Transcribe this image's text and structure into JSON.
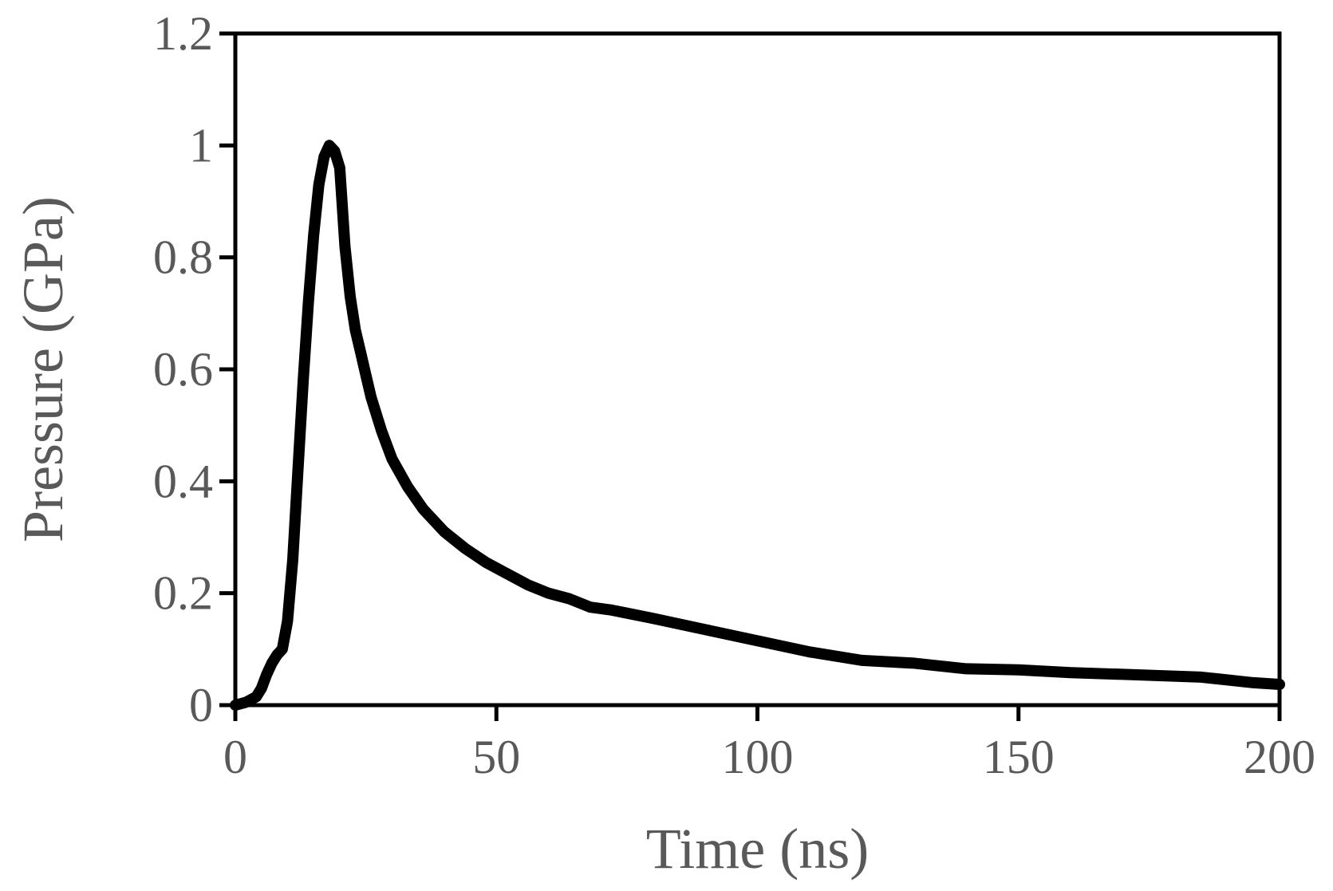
{
  "chart_data": {
    "type": "line",
    "title": "",
    "xlabel": "Time (ns)",
    "ylabel": "Pressure (GPa)",
    "xlim": [
      0,
      200
    ],
    "ylim": [
      0,
      1.2
    ],
    "x_ticks": [
      0,
      50,
      100,
      150,
      200
    ],
    "x_tick_labels": [
      "0",
      "50",
      "100",
      "150",
      "200"
    ],
    "y_ticks": [
      0,
      0.2,
      0.4,
      0.6,
      0.8,
      1.0,
      1.2
    ],
    "y_tick_labels": [
      "0",
      "0.2",
      "0.4",
      "0.6",
      "0.8",
      "1",
      "1.2"
    ],
    "grid": false,
    "legend": "none",
    "line_color": "#000000",
    "series": [
      {
        "x": [
          0,
          2,
          4,
          5,
          6,
          7,
          8,
          9,
          10,
          11,
          12,
          13,
          14,
          15,
          16,
          17,
          18,
          19,
          20,
          21,
          22,
          23,
          24,
          25,
          26,
          28,
          30,
          33,
          36,
          40,
          44,
          48,
          52,
          56,
          60,
          64,
          68,
          72,
          80,
          90,
          100,
          110,
          120,
          130,
          140,
          150,
          160,
          170,
          185,
          195,
          200
        ],
        "y": [
          0.0,
          0.005,
          0.015,
          0.03,
          0.055,
          0.075,
          0.09,
          0.1,
          0.15,
          0.26,
          0.42,
          0.58,
          0.72,
          0.84,
          0.93,
          0.98,
          1.0,
          0.99,
          0.96,
          0.82,
          0.73,
          0.67,
          0.63,
          0.59,
          0.55,
          0.49,
          0.44,
          0.39,
          0.35,
          0.31,
          0.28,
          0.255,
          0.235,
          0.215,
          0.2,
          0.19,
          0.175,
          0.17,
          0.155,
          0.135,
          0.115,
          0.095,
          0.08,
          0.075,
          0.065,
          0.063,
          0.058,
          0.055,
          0.05,
          0.04,
          0.037
        ]
      }
    ]
  }
}
